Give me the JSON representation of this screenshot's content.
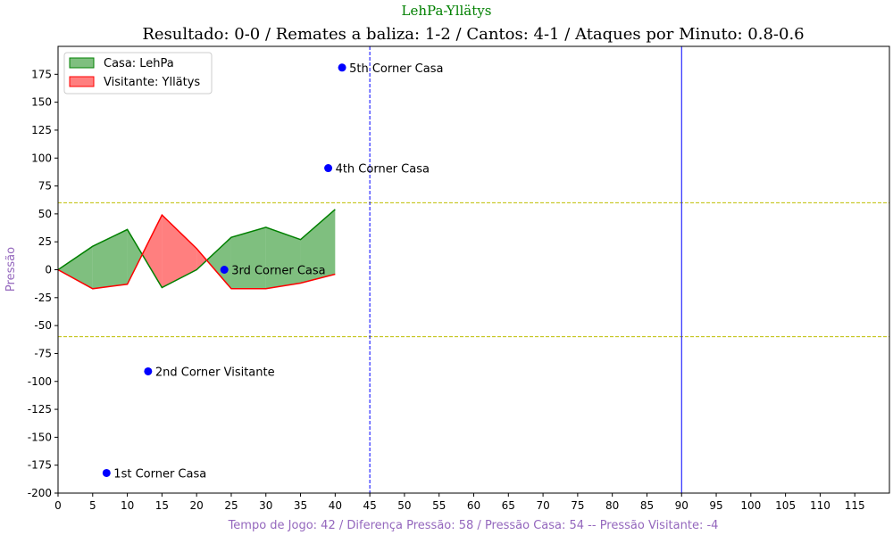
{
  "chart_data": {
    "type": "area",
    "suptitle": "LehPa-Yllätys",
    "title": "Resultado: 0-0 / Remates a baliza: 1-2 / Cantos: 4-1 / Ataques por Minuto: 0.8-0.6",
    "xlabel": "Tempo de Jogo: 42 / Diferença Pressão: 58 / Pressão Casa: 54 -- Pressão Visitante: -4",
    "ylabel": "Pressão",
    "xlim": [
      0,
      120
    ],
    "ylim": [
      -200,
      200
    ],
    "x_ticks": [
      0,
      5,
      10,
      15,
      20,
      25,
      30,
      35,
      40,
      45,
      50,
      55,
      60,
      65,
      70,
      75,
      80,
      85,
      90,
      95,
      100,
      105,
      110,
      115
    ],
    "y_ticks": [
      -200,
      -175,
      -150,
      -125,
      -100,
      -75,
      -50,
      -25,
      0,
      25,
      50,
      75,
      100,
      125,
      150,
      175
    ],
    "legend_position": "top-left",
    "colors": {
      "home": "#008000",
      "away": "#ff0000",
      "corner_marker": "#0000ff",
      "half_line": "#0000ff",
      "threshold": "#bfbf00",
      "suptitle": "#008000",
      "axis_label": "#9467bd"
    },
    "x": [
      0,
      5,
      10,
      15,
      20,
      25,
      30,
      35,
      40
    ],
    "series": [
      {
        "name": "Casa: LehPa",
        "values": [
          0,
          21,
          36,
          -16,
          0,
          29,
          38,
          27,
          54
        ]
      },
      {
        "name": "Visitante: Yllätys",
        "values": [
          0,
          -17,
          -13,
          49,
          19,
          -17,
          -17,
          -12,
          -4
        ]
      }
    ],
    "threshold_lines": [
      60,
      -60
    ],
    "vertical_lines": [
      {
        "x": 45,
        "style": "dashed"
      },
      {
        "x": 90,
        "style": "solid"
      }
    ],
    "annotations": [
      {
        "x": 7,
        "y": -182,
        "label": "1st Corner Casa"
      },
      {
        "x": 13,
        "y": -91,
        "label": "2nd Corner Visitante"
      },
      {
        "x": 24,
        "y": 0,
        "label": "3rd Corner Casa"
      },
      {
        "x": 39,
        "y": 91,
        "label": "4th Corner Casa"
      },
      {
        "x": 41,
        "y": 181,
        "label": "5th Corner Casa"
      }
    ]
  }
}
